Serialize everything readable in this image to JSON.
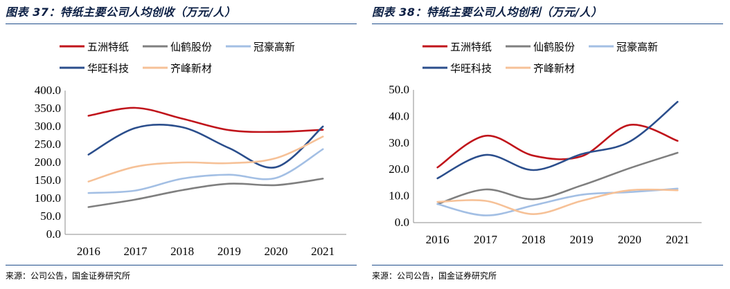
{
  "panels": [
    {
      "title": "图表 37：特纸主要公司人均创收（万元/人）",
      "source": "来源：公司公告，国金证券研究所"
    },
    {
      "title": "图表 38：特纸主要公司人均创利（万元/人）",
      "source": "来源：公司公告，国金证券研究所"
    }
  ],
  "chart_data": [
    {
      "type": "line",
      "title": "图表 37：特纸主要公司人均创收（万元/人）",
      "categories": [
        "2016",
        "2017",
        "2018",
        "2019",
        "2020",
        "2021"
      ],
      "ylim": [
        0,
        400
      ],
      "yticks": [
        "0.0",
        "50.0",
        "100.0",
        "150.0",
        "200.0",
        "250.0",
        "300.0",
        "350.0",
        "400.0"
      ],
      "series": [
        {
          "name": "五洲特纸",
          "color": "#c0141b",
          "values": [
            330,
            352,
            322,
            290,
            285,
            291
          ]
        },
        {
          "name": "仙鹤股份",
          "color": "#7f7f7f",
          "values": [
            76,
            97,
            123,
            141,
            137,
            155
          ]
        },
        {
          "name": "冠豪高新",
          "color": "#a3bfe4",
          "values": [
            115,
            122,
            155,
            166,
            157,
            237
          ]
        },
        {
          "name": "华旺科技",
          "color": "#2b4e8c",
          "values": [
            222,
            296,
            298,
            240,
            187,
            300
          ]
        },
        {
          "name": "齐峰新材",
          "color": "#f6c197",
          "values": [
            147,
            188,
            200,
            198,
            212,
            272
          ]
        }
      ]
    },
    {
      "type": "line",
      "title": "图表 38：特纸主要公司人均创利（万元/人）",
      "categories": [
        "2016",
        "2017",
        "2018",
        "2019",
        "2020",
        "2021"
      ],
      "ylim": [
        0,
        50
      ],
      "yticks": [
        "0.0",
        "10.0",
        "20.0",
        "30.0",
        "40.0",
        "50.0"
      ],
      "series": [
        {
          "name": "五洲特纸",
          "color": "#c0141b",
          "values": [
            20.8,
            32.7,
            25.2,
            25.0,
            36.8,
            30.8
          ]
        },
        {
          "name": "仙鹤股份",
          "color": "#7f7f7f",
          "values": [
            7.0,
            12.5,
            8.8,
            14.0,
            20.5,
            26.3
          ]
        },
        {
          "name": "冠豪高新",
          "color": "#a3bfe4",
          "values": [
            7.0,
            2.7,
            6.5,
            10.5,
            11.5,
            12.8
          ]
        },
        {
          "name": "华旺科技",
          "color": "#2b4e8c",
          "values": [
            16.7,
            25.5,
            19.8,
            25.8,
            30.5,
            45.5
          ]
        },
        {
          "name": "齐峰新材",
          "color": "#f6c197",
          "values": [
            7.8,
            8.2,
            3.2,
            8.2,
            12.2,
            12.2
          ]
        }
      ]
    }
  ]
}
